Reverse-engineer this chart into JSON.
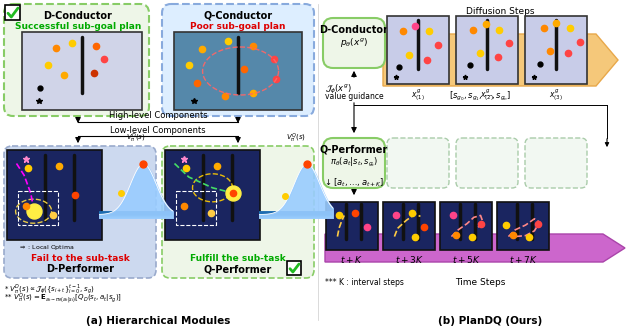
{
  "title_a": "(a) Hierarchical Modules",
  "title_b": "(b) PlanDQ (Ours)",
  "fig_bg": "#ffffff",
  "d_conductor_label": "D-Conductor",
  "q_conductor_label": "Q-Conductor",
  "success_label": "Successful sub-goal plan",
  "poor_label": "Poor sub-goal plan",
  "high_level_text": "High-level Components",
  "low_level_text": "Low-level Components",
  "fail_label": "Fail to the sub-task",
  "fulfill_label": "Fulfill the sub-task",
  "d_performer_label": "D-Performer",
  "q_performer_label": "Q-Performer",
  "diffusion_steps_label": "Diffusion Steps",
  "b_dconductor_label": "D-Conductor",
  "b_dconductor_sub": "$p_\\theta(x^g)$",
  "b_value_label1": "$\\mathcal{J}_\\phi(x^g)$",
  "b_value_label2": "value guidance",
  "b_sg_label": "$[s_{g_0}, s_{g_1}, \\cdots, s_{g_n}]$",
  "b_qperformer_label": "Q-Performer",
  "b_qperformer_sub": "$\\pi_\\theta(a_t|s_t, s_{g_t})$",
  "b_actions_label": "$\\downarrow [a_t, \\ldots, a_{t+K}]$",
  "b_x1_label": "$x_{(1)}^g$",
  "b_x2_label": "$x_{(2)}^g$",
  "b_x3_label": "$x_{(3)}^g$",
  "time_steps_label": "Time Steps",
  "k_note": "*** K : interval steps",
  "t_labels": [
    "$t+K$",
    "$t+3K$",
    "$t+5K$",
    "$t+7K$"
  ]
}
